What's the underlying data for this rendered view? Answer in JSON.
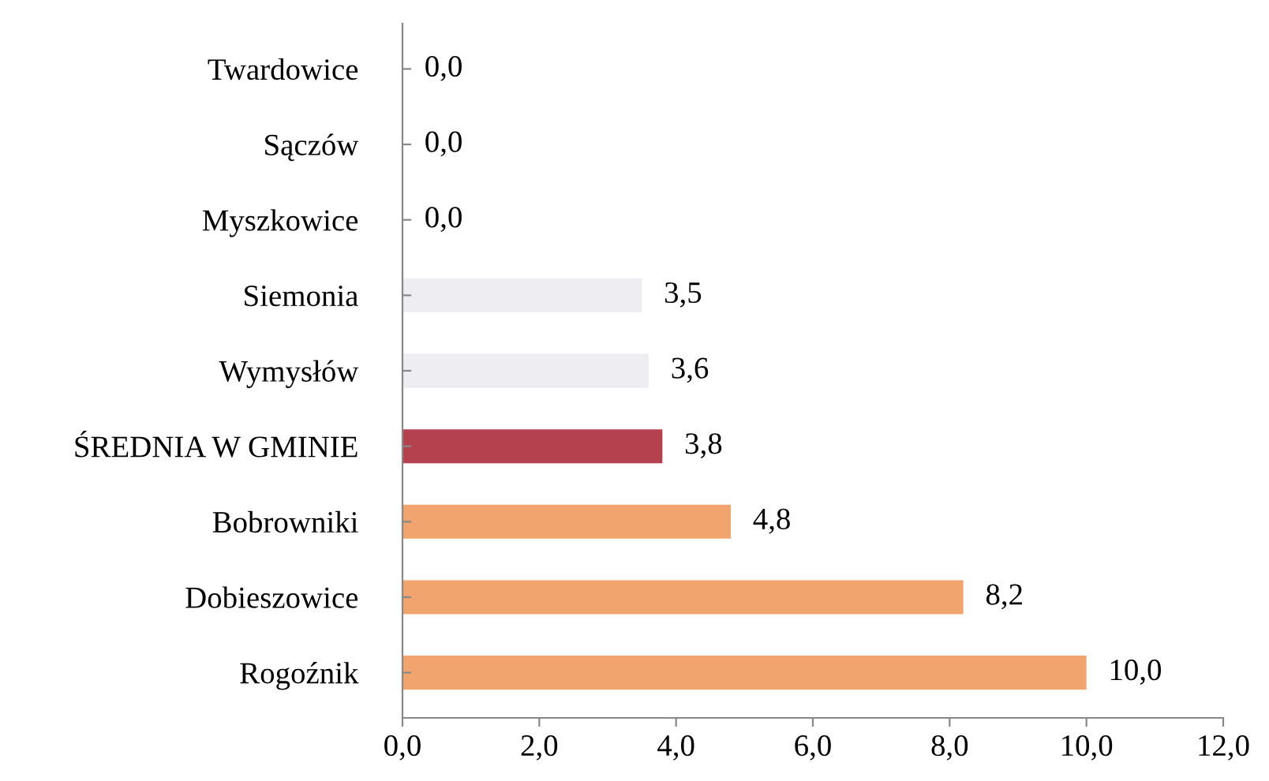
{
  "chart_data": {
    "type": "bar",
    "orientation": "horizontal",
    "categories": [
      "Twardowice",
      "Sączów",
      "Myszkowice",
      "Siemonia",
      "Wymysłów",
      "ŚREDNIA W GMINIE",
      "Bobrowniki",
      "Dobieszowice",
      "Rogoźnik"
    ],
    "values": [
      0.0,
      0.0,
      0.0,
      3.5,
      3.6,
      3.8,
      4.8,
      8.2,
      10.0
    ],
    "colors": [
      "#f2a46e",
      "#f2a46e",
      "#f2a46e",
      "#eeeef2",
      "#eeeef2",
      "#b5404e",
      "#f2a46e",
      "#f2a46e",
      "#f2a46e"
    ],
    "value_labels": [
      "0,0",
      "0,0",
      "0,0",
      "3,5",
      "3,6",
      "3,8",
      "4,8",
      "8,2",
      "10,0"
    ],
    "xlim": [
      0,
      12
    ],
    "xticks": [
      {
        "value": 0,
        "label": "0,0"
      },
      {
        "value": 2,
        "label": "2,0"
      },
      {
        "value": 4,
        "label": "4,0"
      },
      {
        "value": 6,
        "label": "6,0"
      },
      {
        "value": 8,
        "label": "8,0"
      },
      {
        "value": 10,
        "label": "10,0"
      },
      {
        "value": 12,
        "label": "12,0"
      }
    ],
    "grid": false,
    "legend": false
  }
}
